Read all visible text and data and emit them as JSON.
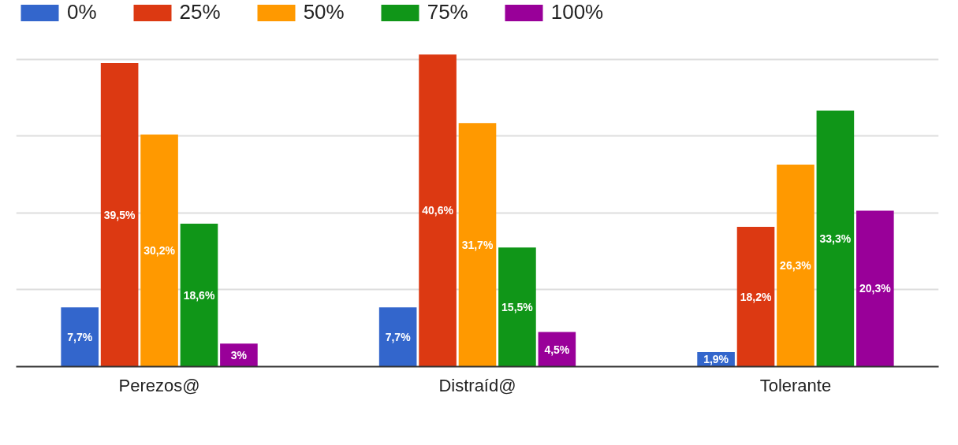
{
  "chart_data": {
    "type": "bar",
    "categories": [
      "Perezos@",
      "Distraíd@",
      "Tolerante"
    ],
    "series": [
      {
        "name": "0%",
        "color": "#3366cc",
        "values": [
          7.7,
          7.7,
          1.9
        ],
        "value_labels": [
          "7,7%",
          "7,7%",
          "1,9%"
        ]
      },
      {
        "name": "25%",
        "color": "#dc3912",
        "values": [
          39.5,
          40.6,
          18.2
        ],
        "value_labels": [
          "39,5%",
          "40,6%",
          "18,2%"
        ]
      },
      {
        "name": "50%",
        "color": "#ff9900",
        "values": [
          30.2,
          31.7,
          26.3
        ],
        "value_labels": [
          "30,2%",
          "31,7%",
          "26,3%"
        ]
      },
      {
        "name": "75%",
        "color": "#109618",
        "values": [
          18.6,
          15.5,
          33.3
        ],
        "value_labels": [
          "18,6%",
          "15,5%",
          "33,3%"
        ]
      },
      {
        "name": "100%",
        "color": "#990099",
        "values": [
          3,
          4.5,
          20.3
        ],
        "value_labels": [
          "3%",
          "4,5%",
          "20,3%"
        ]
      }
    ],
    "grid": "y",
    "legend": "top",
    "tick_labels": "x"
  }
}
